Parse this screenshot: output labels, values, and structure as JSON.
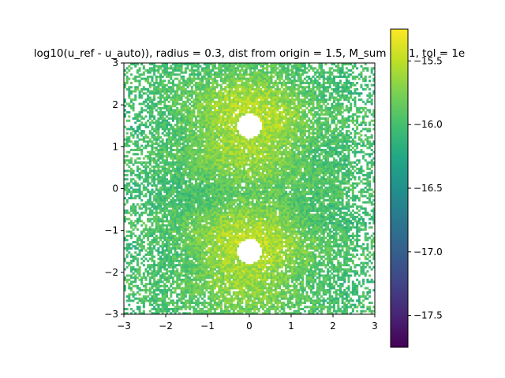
{
  "chart_data": {
    "type": "heatmap",
    "title": "log10(u_ref - u_auto)), radius = 0.3, dist from origin = 1.5, M_sum = 21, tol = 1e",
    "xlabel": "",
    "ylabel": "",
    "xlim": [
      -3,
      3
    ],
    "ylim": [
      -3,
      3
    ],
    "x_ticks": [
      "−3",
      "−2",
      "−1",
      "0",
      "1",
      "2",
      "3"
    ],
    "y_ticks": [
      "−3",
      "−2",
      "−1",
      "0",
      "1",
      "2",
      "3"
    ],
    "grid": false,
    "holes": [
      {
        "center": [
          0,
          1.5
        ],
        "radius": 0.3
      },
      {
        "center": [
          0,
          -1.5
        ],
        "radius": 0.3
      }
    ],
    "field": {
      "grid_size": 120,
      "typical_value": -16.0,
      "value_near_holes": -15.5,
      "missing_fraction_far": 0.45
    },
    "colorbar": {
      "colormap": "viridis",
      "range": [
        -17.75,
        -15.25
      ],
      "ticks": [
        "−15.5",
        "−16.0",
        "−16.5",
        "−17.0",
        "−17.5"
      ],
      "tick_values": [
        -15.5,
        -16.0,
        -16.5,
        -17.0,
        -17.5
      ]
    }
  }
}
